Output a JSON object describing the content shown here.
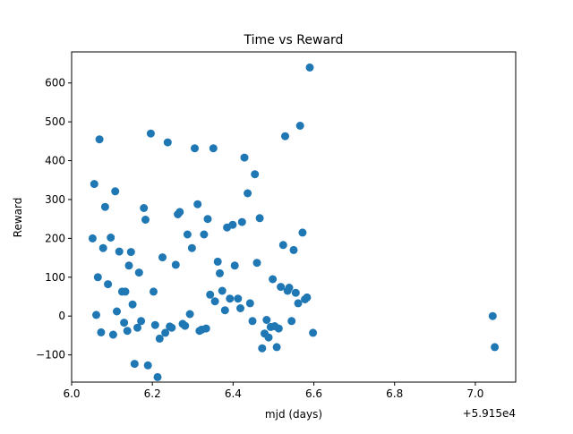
{
  "chart_data": {
    "type": "scatter",
    "title": "Time vs Reward",
    "xlabel": "mjd (days)",
    "ylabel": "Reward",
    "x_offset_label": "+5.915e4",
    "xlim": [
      6.0,
      7.1
    ],
    "ylim": [
      -170,
      680
    ],
    "x_ticks": [
      6.0,
      6.2,
      6.4,
      6.6,
      6.8,
      7.0
    ],
    "x_tick_labels": [
      "6.0",
      "6.2",
      "6.4",
      "6.6",
      "6.8",
      "7.0"
    ],
    "y_ticks": [
      -100,
      0,
      100,
      200,
      300,
      400,
      500,
      600
    ],
    "y_tick_labels": [
      "−100",
      "0",
      "100",
      "200",
      "300",
      "400",
      "500",
      "600"
    ],
    "grid": false,
    "marker_color": "#1f77b4",
    "points": [
      [
        6.052,
        200
      ],
      [
        6.056,
        340
      ],
      [
        6.061,
        3
      ],
      [
        6.065,
        100
      ],
      [
        6.069,
        455
      ],
      [
        6.073,
        -42
      ],
      [
        6.078,
        175
      ],
      [
        6.083,
        281
      ],
      [
        6.09,
        82
      ],
      [
        6.097,
        202
      ],
      [
        6.103,
        -48
      ],
      [
        6.108,
        321
      ],
      [
        6.112,
        12
      ],
      [
        6.118,
        166
      ],
      [
        6.125,
        63
      ],
      [
        6.13,
        -17
      ],
      [
        6.133,
        63
      ],
      [
        6.138,
        -38
      ],
      [
        6.142,
        130
      ],
      [
        6.147,
        165
      ],
      [
        6.151,
        30
      ],
      [
        6.156,
        -123
      ],
      [
        6.163,
        -30
      ],
      [
        6.167,
        112
      ],
      [
        6.172,
        -13
      ],
      [
        6.179,
        278
      ],
      [
        6.183,
        248
      ],
      [
        6.189,
        -127
      ],
      [
        6.196,
        470
      ],
      [
        6.203,
        63
      ],
      [
        6.207,
        -23
      ],
      [
        6.213,
        -157
      ],
      [
        6.218,
        -58
      ],
      [
        6.225,
        151
      ],
      [
        6.232,
        -43
      ],
      [
        6.238,
        447
      ],
      [
        6.243,
        -27
      ],
      [
        6.248,
        -30
      ],
      [
        6.258,
        132
      ],
      [
        6.263,
        262
      ],
      [
        6.268,
        268
      ],
      [
        6.275,
        -20
      ],
      [
        6.281,
        -25
      ],
      [
        6.287,
        210
      ],
      [
        6.293,
        5
      ],
      [
        6.298,
        175
      ],
      [
        6.305,
        432
      ],
      [
        6.312,
        288
      ],
      [
        6.317,
        -38
      ],
      [
        6.322,
        -35
      ],
      [
        6.328,
        210
      ],
      [
        6.333,
        -32
      ],
      [
        6.337,
        250
      ],
      [
        6.343,
        55
      ],
      [
        6.351,
        432
      ],
      [
        6.355,
        38
      ],
      [
        6.362,
        140
      ],
      [
        6.367,
        110
      ],
      [
        6.373,
        65
      ],
      [
        6.38,
        15
      ],
      [
        6.385,
        228
      ],
      [
        6.392,
        45
      ],
      [
        6.399,
        235
      ],
      [
        6.404,
        130
      ],
      [
        6.412,
        45
      ],
      [
        6.418,
        20
      ],
      [
        6.422,
        242
      ],
      [
        6.428,
        408
      ],
      [
        6.436,
        316
      ],
      [
        6.442,
        33
      ],
      [
        6.448,
        -13
      ],
      [
        6.454,
        365
      ],
      [
        6.459,
        137
      ],
      [
        6.466,
        252
      ],
      [
        6.472,
        -83
      ],
      [
        6.478,
        -45
      ],
      [
        6.483,
        -10
      ],
      [
        6.488,
        -55
      ],
      [
        6.493,
        -28
      ],
      [
        6.498,
        95
      ],
      [
        6.503,
        -26
      ],
      [
        6.508,
        -80
      ],
      [
        6.513,
        -32
      ],
      [
        6.518,
        75
      ],
      [
        6.524,
        183
      ],
      [
        6.529,
        463
      ],
      [
        6.535,
        65
      ],
      [
        6.539,
        73
      ],
      [
        6.545,
        -13
      ],
      [
        6.55,
        170
      ],
      [
        6.555,
        60
      ],
      [
        6.561,
        33
      ],
      [
        6.566,
        490
      ],
      [
        6.572,
        215
      ],
      [
        6.578,
        43
      ],
      [
        6.583,
        48
      ],
      [
        6.59,
        640
      ],
      [
        6.598,
        -43
      ],
      [
        7.043,
        0
      ],
      [
        7.048,
        -80
      ]
    ]
  }
}
